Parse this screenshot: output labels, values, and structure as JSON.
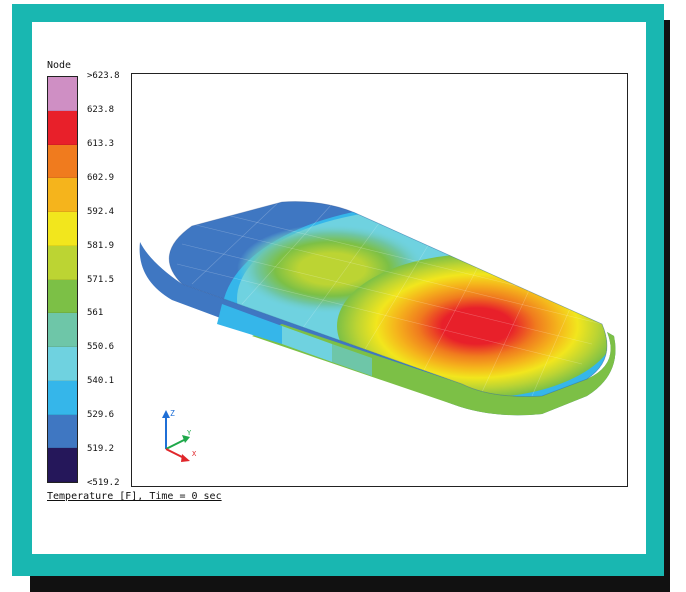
{
  "legend": {
    "title": "Node",
    "colors": [
      "#cf8fc4",
      "#e8202a",
      "#f07b1e",
      "#f5b41c",
      "#f2e61d",
      "#bcd433",
      "#7cc046",
      "#6ec6a8",
      "#6fd2e0",
      "#35b6ea",
      "#3f77c2",
      "#25175a"
    ],
    "labels": [
      ">623.8",
      "623.8",
      "613.3",
      "602.9",
      "592.4",
      "581.9",
      "571.5",
      "561",
      "550.6",
      "540.1",
      "529.6",
      "519.2",
      "<519.2"
    ]
  },
  "caption": "Temperature [F], Time = 0 sec",
  "triad": {
    "z": "Z",
    "y": "Y",
    "x": "X"
  }
}
